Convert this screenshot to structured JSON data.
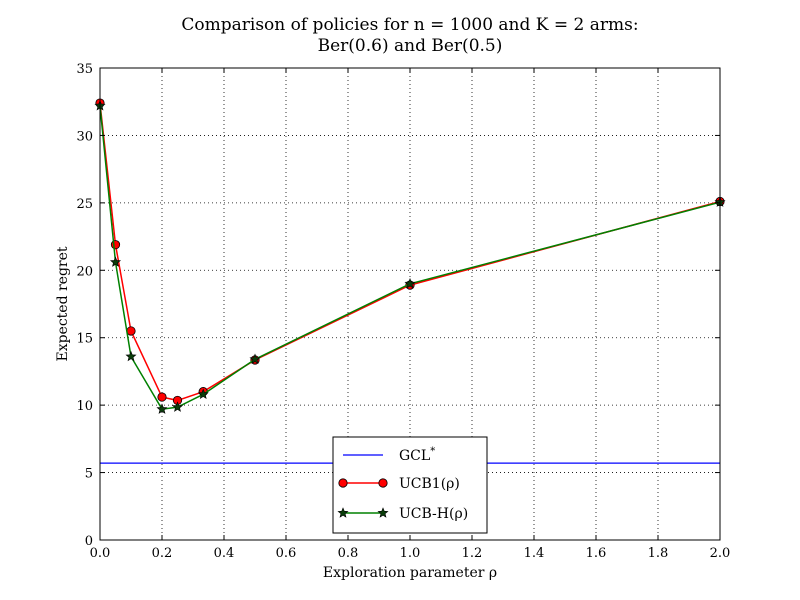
{
  "chart_data": {
    "type": "line",
    "title_line1": "Comparison of policies for n = 1000 and K = 2 arms:",
    "title_line2": "Ber(0.6) and Ber(0.5)",
    "xlabel": "Exploration parameter ρ",
    "ylabel": "Expected regret",
    "xlim": [
      0.0,
      2.0
    ],
    "ylim": [
      0,
      35
    ],
    "xticks": [
      "0.0",
      "0.2",
      "0.4",
      "0.6",
      "0.8",
      "1.0",
      "1.2",
      "1.4",
      "1.6",
      "1.8",
      "2.0"
    ],
    "yticks": [
      "0",
      "5",
      "10",
      "15",
      "20",
      "25",
      "30",
      "35"
    ],
    "xtick_values": [
      0.0,
      0.2,
      0.4,
      0.6,
      0.8,
      1.0,
      1.2,
      1.4,
      1.6,
      1.8,
      2.0
    ],
    "ytick_values": [
      0,
      5,
      10,
      15,
      20,
      25,
      30,
      35
    ],
    "grid": true,
    "legend_position": "bottom-center",
    "series": [
      {
        "name": "GCL*",
        "kind": "hline",
        "color": "#0000ff",
        "y": 5.7
      },
      {
        "name": "UCB1(ρ)",
        "kind": "line",
        "marker": "circle",
        "color": "#ff0000",
        "x": [
          0.0,
          0.05,
          0.1,
          0.2,
          0.25,
          0.333,
          0.5,
          1.0,
          2.0
        ],
        "values": [
          32.4,
          21.9,
          15.5,
          10.6,
          10.35,
          11.0,
          13.35,
          18.9,
          25.1
        ]
      },
      {
        "name": "UCB-H(ρ)",
        "kind": "line",
        "marker": "star",
        "color": "#008000",
        "x": [
          0.0,
          0.05,
          0.1,
          0.2,
          0.25,
          0.333,
          0.5,
          1.0,
          2.0
        ],
        "values": [
          32.2,
          20.6,
          13.6,
          9.7,
          9.85,
          10.8,
          13.4,
          19.0,
          25.05
        ]
      }
    ],
    "legend": [
      {
        "label": "GCL",
        "sup": "*"
      },
      {
        "label": "UCB1(ρ)",
        "sup": ""
      },
      {
        "label": "UCB-H(ρ)",
        "sup": ""
      }
    ]
  }
}
